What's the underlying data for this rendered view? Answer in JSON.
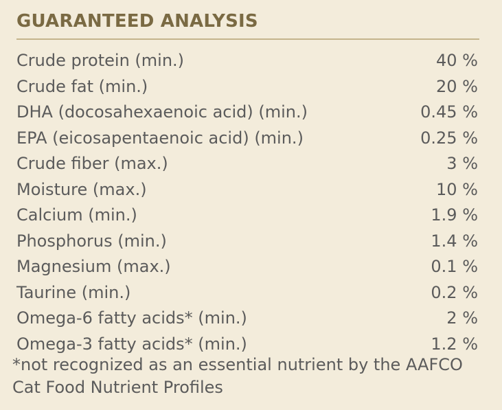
{
  "section": {
    "title": "GUARANTEED ANALYSIS",
    "rows": [
      {
        "label": "Crude protein (min.)",
        "value": "40 %"
      },
      {
        "label": "Crude fat (min.)",
        "value": "20 %"
      },
      {
        "label": "DHA (docosahexaenoic acid) (min.)",
        "value": "0.45 %"
      },
      {
        "label": "EPA (eicosapentaenoic acid) (min.)",
        "value": "0.25 %"
      },
      {
        "label": "Crude fiber (max.)",
        "value": "3 %"
      },
      {
        "label": "Moisture (max.)",
        "value": "10 %"
      },
      {
        "label": "Calcium (min.)",
        "value": "1.9 %"
      },
      {
        "label": "Phosphorus (min.)",
        "value": "1.4 %"
      },
      {
        "label": "Magnesium (max.)",
        "value": "0.1 %"
      },
      {
        "label": "Taurine (min.)",
        "value": "0.2 %"
      },
      {
        "label": "Omega-6 fatty acids* (min.)",
        "value": "2 %"
      },
      {
        "label": "Omega-3 fatty acids* (min.)",
        "value": "1.2 %"
      }
    ],
    "footnote": "*not recognized as an essential nutrient by the AAFCO Cat Food Nutrient Profiles"
  }
}
